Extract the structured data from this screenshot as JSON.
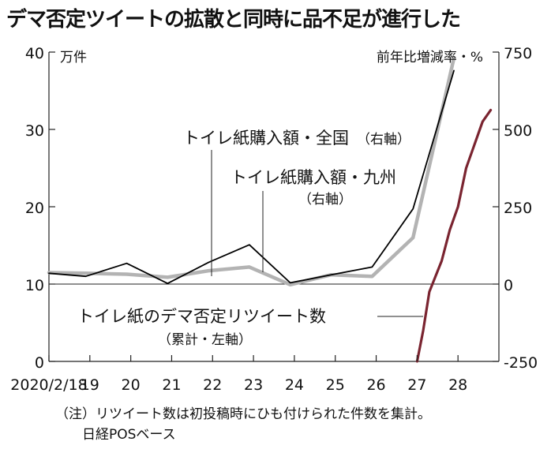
{
  "title": "デマ否定ツイートの拡散と同時に品不足が進行した",
  "chart_data": {
    "type": "line",
    "left_axis": {
      "unit_label": "万件",
      "ticks": [
        0,
        10,
        20,
        30,
        40
      ],
      "range": [
        0,
        40
      ]
    },
    "right_axis": {
      "unit_label": "前年比増減率・%",
      "ticks": [
        -250,
        0,
        250,
        500,
        750
      ],
      "range": [
        -250,
        750
      ]
    },
    "x_axis": {
      "first_tick_label": "2020/2/18",
      "tick_labels": [
        "19",
        "20",
        "21",
        "22",
        "23",
        "24",
        "25",
        "26",
        "27",
        "28"
      ],
      "range": [
        18,
        29
      ]
    },
    "series": [
      {
        "name": "トイレ紙購入額・全国",
        "axis_note": "（右軸）",
        "axis": "right",
        "color": "#000000",
        "x": [
          18.0,
          18.9,
          19.9,
          20.9,
          21.9,
          22.9,
          23.9,
          24.9,
          25.9,
          26.9,
          27.9
        ],
        "y": [
          35,
          25,
          67,
          2,
          70,
          127,
          4,
          30,
          55,
          243,
          690
        ]
      },
      {
        "name": "トイレ紙購入額・九州",
        "axis_note": "（右軸）",
        "axis": "right",
        "color": "#b3b3b3",
        "x": [
          18.0,
          18.9,
          19.9,
          20.9,
          21.9,
          22.9,
          23.9,
          24.9,
          25.9,
          26.9,
          27.9
        ],
        "y": [
          37,
          35,
          32,
          22,
          43,
          55,
          -2,
          30,
          25,
          150,
          730
        ]
      },
      {
        "name": "トイレ紙のデマ否定リツイート数",
        "axis_note": "（累計・左軸）",
        "axis": "left",
        "color": "#7a2430",
        "x": [
          27.0,
          27.15,
          27.3,
          27.45,
          27.6,
          27.8,
          28.0,
          28.2,
          28.4,
          28.6,
          28.8
        ],
        "y": [
          0,
          4,
          9,
          11,
          13,
          17,
          20,
          25,
          28,
          31,
          32.5
        ]
      }
    ]
  },
  "notes": [
    "（注）リツイート数は初投稿時にひも付けられた件数を集計。",
    "日経POSベース"
  ]
}
